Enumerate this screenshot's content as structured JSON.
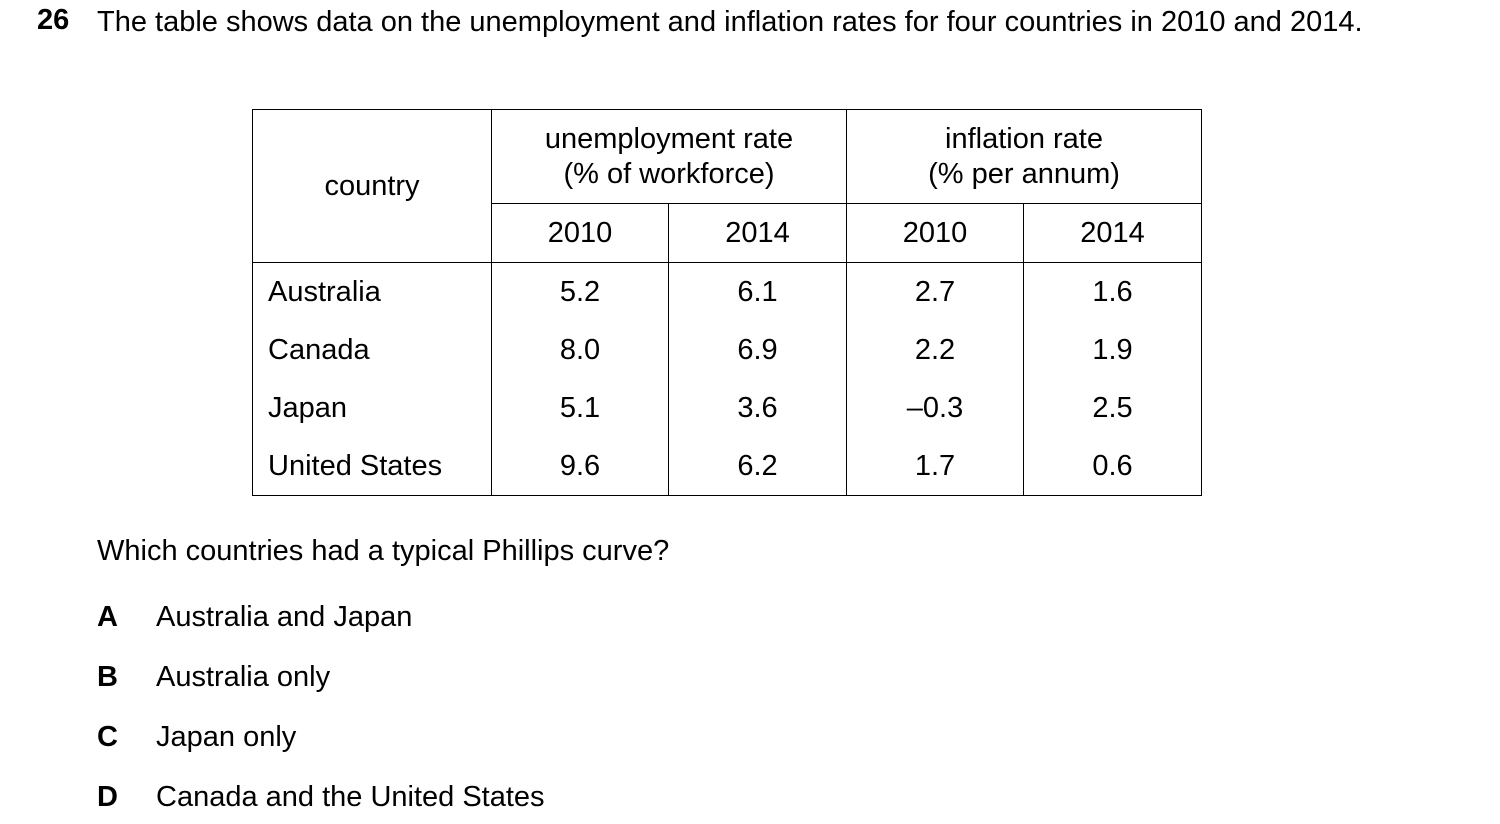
{
  "question": {
    "number": "26",
    "stem": "The table shows data on the unemployment and inflation rates for four countries in 2010 and 2014.",
    "prompt": "Which countries had a typical Phillips curve?"
  },
  "table": {
    "country_header": "country",
    "unemployment_header_line1": "unemployment rate",
    "unemployment_header_line2": "(% of workforce)",
    "inflation_header_line1": "inflation rate",
    "inflation_header_line2": "(% per annum)",
    "years": [
      "2010",
      "2014",
      "2010",
      "2014"
    ],
    "rows": [
      {
        "country": "Australia",
        "values": [
          "5.2",
          "6.1",
          "2.7",
          "1.6"
        ]
      },
      {
        "country": "Canada",
        "values": [
          "8.0",
          "6.9",
          "2.2",
          "1.9"
        ]
      },
      {
        "country": "Japan",
        "values": [
          "5.1",
          "3.6",
          "–0.3",
          "2.5"
        ]
      },
      {
        "country": "United States",
        "values": [
          "9.6",
          "6.2",
          "1.7",
          "0.6"
        ]
      }
    ]
  },
  "options": [
    {
      "letter": "A",
      "text": "Australia and Japan"
    },
    {
      "letter": "B",
      "text": "Australia only"
    },
    {
      "letter": "C",
      "text": "Japan only"
    },
    {
      "letter": "D",
      "text": "Canada and the United States"
    }
  ]
}
